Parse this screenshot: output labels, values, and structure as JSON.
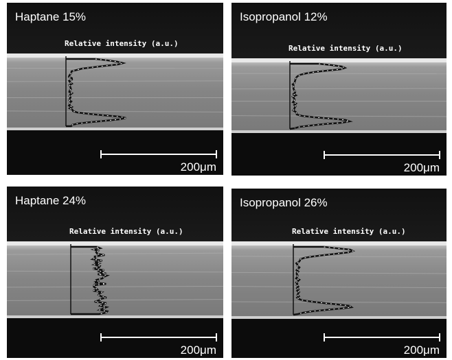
{
  "panels": [
    {
      "title": "Haptane 15%",
      "intensity_label": "Relative intensity (a.u.)",
      "scale_label": "200μm"
    },
    {
      "title": "Isopropanol 12%",
      "intensity_label": "Relative intensity (a.u.)",
      "scale_label": "200μm"
    },
    {
      "title": "Haptane 24%",
      "intensity_label": "Relative intensity (a.u.)",
      "scale_label": "200μm"
    },
    {
      "title": "Isopropanol 26%",
      "intensity_label": "Relative intensity (a.u.)",
      "scale_label": "200μm"
    }
  ]
}
